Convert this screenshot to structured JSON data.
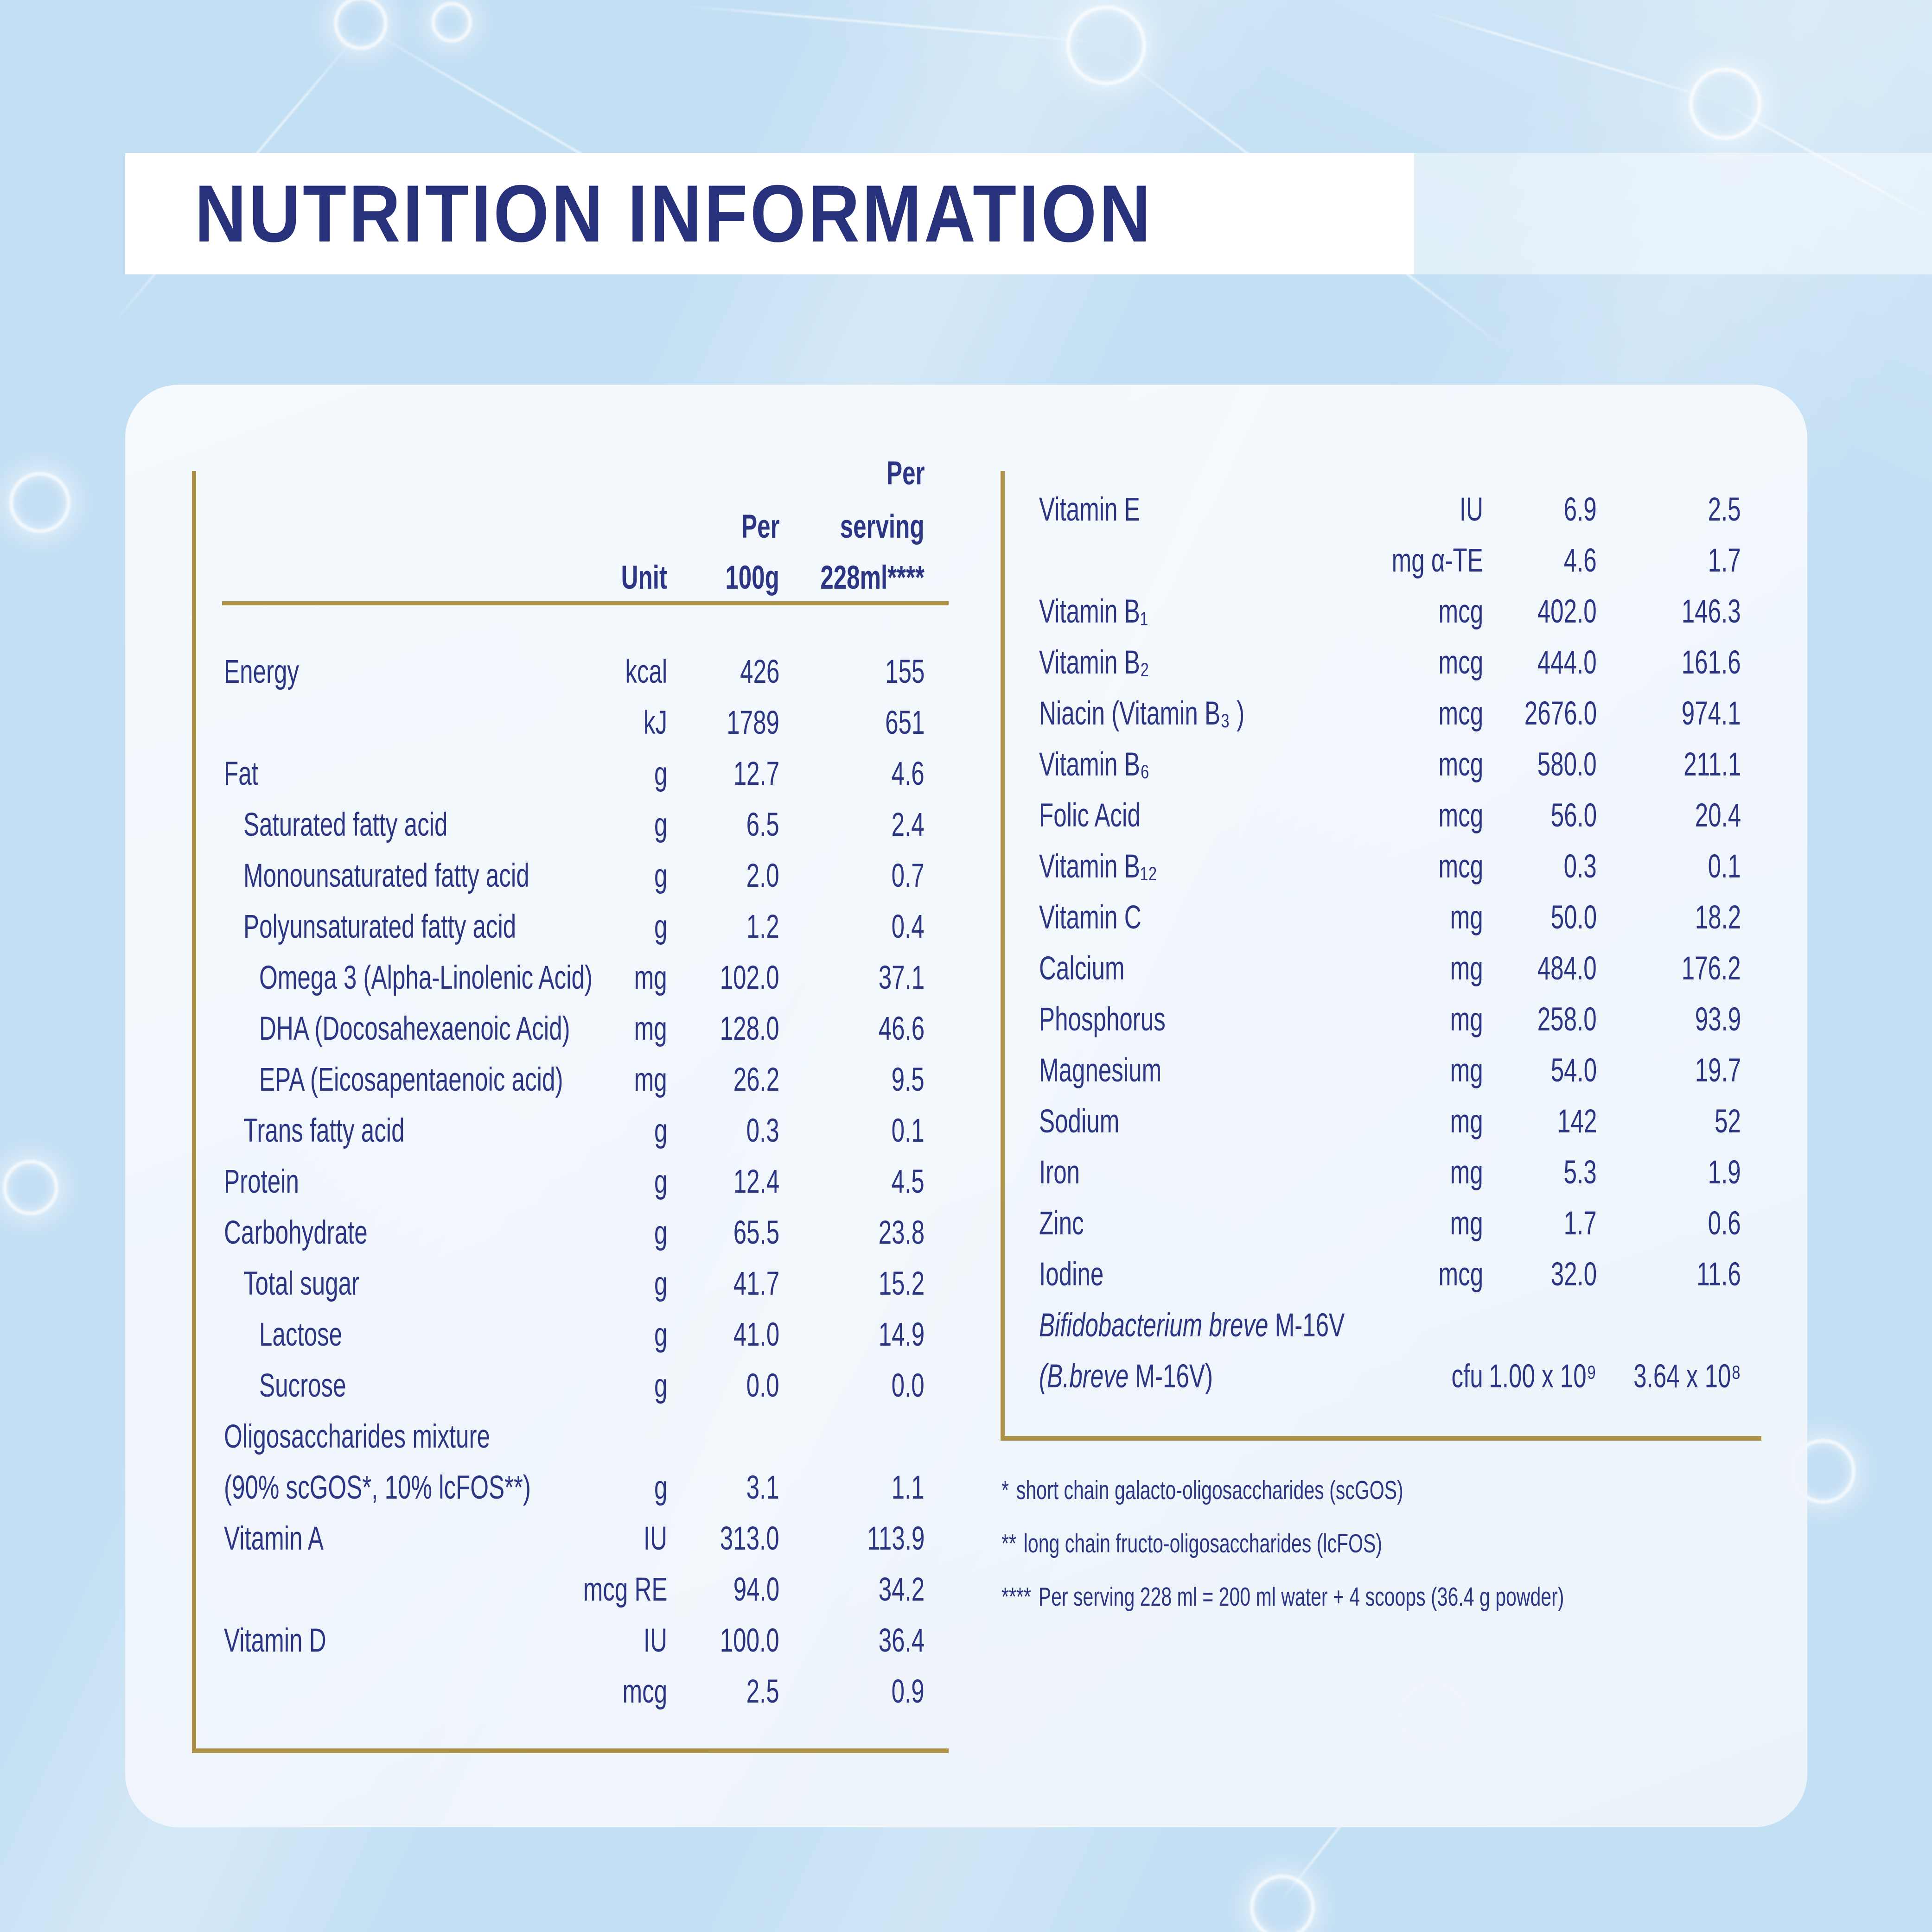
{
  "page": {
    "title": "NUTRITION INFORMATION"
  },
  "colors": {
    "navy_text": "#2b3583",
    "title_navy": "#27317c",
    "gold_rule": "#ac9044",
    "background_blue": "#c3dff4",
    "panel_white": "#f3f8fc",
    "band_white": "#ffffff"
  },
  "table_headers": {
    "unit": "Unit",
    "per": "Per",
    "per_100g": "100g",
    "per_serving_line1": "Per",
    "per_serving_line2": "serving",
    "per_serving_line3": "228ml****"
  },
  "left_table": {
    "rows": [
      {
        "label": "Energy",
        "indent": 0,
        "unit": "kcal",
        "per_100g": "426",
        "per_serving": "155"
      },
      {
        "label": "",
        "indent": 0,
        "unit": "kJ",
        "per_100g": "1789",
        "per_serving": "651"
      },
      {
        "label": "Fat",
        "indent": 0,
        "unit": "g",
        "per_100g": "12.7",
        "per_serving": "4.6"
      },
      {
        "label": "Saturated fatty acid",
        "indent": 1,
        "unit": "g",
        "per_100g": "6.5",
        "per_serving": "2.4"
      },
      {
        "label": "Monounsaturated fatty acid",
        "indent": 1,
        "unit": "g",
        "per_100g": "2.0",
        "per_serving": "0.7"
      },
      {
        "label": "Polyunsaturated fatty acid",
        "indent": 1,
        "unit": "g",
        "per_100g": "1.2",
        "per_serving": "0.4"
      },
      {
        "label": "Omega 3 (Alpha-Linolenic Acid)",
        "indent": 2,
        "unit": "mg",
        "per_100g": "102.0",
        "per_serving": "37.1"
      },
      {
        "label": "DHA (Docosahexaenoic Acid)",
        "indent": 2,
        "unit": "mg",
        "per_100g": "128.0",
        "per_serving": "46.6"
      },
      {
        "label": "EPA (Eicosapentaenoic acid)",
        "indent": 2,
        "unit": "mg",
        "per_100g": "26.2",
        "per_serving": "9.5"
      },
      {
        "label": "Trans fatty acid",
        "indent": 1,
        "unit": "g",
        "per_100g": "0.3",
        "per_serving": "0.1"
      },
      {
        "label": "Protein",
        "indent": 0,
        "unit": "g",
        "per_100g": "12.4",
        "per_serving": "4.5"
      },
      {
        "label": "Carbohydrate",
        "indent": 0,
        "unit": "g",
        "per_100g": "65.5",
        "per_serving": "23.8"
      },
      {
        "label": "Total sugar",
        "indent": 1,
        "unit": "g",
        "per_100g": "41.7",
        "per_serving": "15.2"
      },
      {
        "label": "Lactose",
        "indent": 2,
        "unit": "g",
        "per_100g": "41.0",
        "per_serving": "14.9"
      },
      {
        "label": "Sucrose",
        "indent": 2,
        "unit": "g",
        "per_100g": "0.0",
        "per_serving": "0.0"
      },
      {
        "label": "Oligosaccharides mixture",
        "indent": 0,
        "unit": "",
        "per_100g": "",
        "per_serving": ""
      },
      {
        "label": "(90% scGOS*, 10% lcFOS**)",
        "indent": 0,
        "unit": "g",
        "per_100g": "3.1",
        "per_serving": "1.1"
      },
      {
        "label": "Vitamin A",
        "indent": 0,
        "unit": "IU",
        "per_100g": "313.0",
        "per_serving": "113.9"
      },
      {
        "label": "",
        "indent": 0,
        "unit": "mcg RE",
        "per_100g": "94.0",
        "per_serving": "34.2"
      },
      {
        "label": "Vitamin D",
        "indent": 0,
        "unit": "IU",
        "per_100g": "100.0",
        "per_serving": "36.4"
      },
      {
        "label": "",
        "indent": 0,
        "unit": "mcg",
        "per_100g": "2.5",
        "per_serving": "0.9"
      }
    ]
  },
  "right_table": {
    "rows": [
      {
        "label": "Vitamin E",
        "unit": "IU",
        "per_100g": "6.9",
        "per_serving": "2.5"
      },
      {
        "label": "",
        "unit": "mg α-TE",
        "per_100g": "4.6",
        "per_serving": "1.7"
      },
      {
        "label": "Vitamin B₁",
        "unit": "mcg",
        "per_100g": "402.0",
        "per_serving": "146.3"
      },
      {
        "label": "Vitamin B₂",
        "unit": "mcg",
        "per_100g": "444.0",
        "per_serving": "161.6"
      },
      {
        "label": "Niacin (Vitamin B₃ )",
        "unit": "mcg",
        "per_100g": "2676.0",
        "per_serving": "974.1"
      },
      {
        "label": "Vitamin B₆",
        "unit": "mcg",
        "per_100g": "580.0",
        "per_serving": "211.1"
      },
      {
        "label": "Folic Acid",
        "unit": "mcg",
        "per_100g": "56.0",
        "per_serving": "20.4"
      },
      {
        "label": "Vitamin B₁₂",
        "unit": "mcg",
        "per_100g": "0.3",
        "per_serving": "0.1"
      },
      {
        "label": "Vitamin C",
        "unit": "mg",
        "per_100g": "50.0",
        "per_serving": "18.2"
      },
      {
        "label": "Calcium",
        "unit": "mg",
        "per_100g": "484.0",
        "per_serving": "176.2"
      },
      {
        "label": "Phosphorus",
        "unit": "mg",
        "per_100g": "258.0",
        "per_serving": "93.9"
      },
      {
        "label": "Magnesium",
        "unit": "mg",
        "per_100g": "54.0",
        "per_serving": "19.7"
      },
      {
        "label": "Sodium",
        "unit": "mg",
        "per_100g": "142",
        "per_serving": "52"
      },
      {
        "label": "Iron",
        "unit": "mg",
        "per_100g": "5.3",
        "per_serving": "1.9"
      },
      {
        "label": "Zinc",
        "unit": "mg",
        "per_100g": "1.7",
        "per_serving": "0.6"
      },
      {
        "label": "Iodine",
        "unit": "mcg",
        "per_100g": "32.0",
        "per_serving": "11.6"
      },
      {
        "label_italic": "Bifidobacterium breve",
        "label_rest": " M-16V",
        "unit": "",
        "per_100g": "",
        "per_serving": ""
      },
      {
        "label_italic": "(B.breve",
        "label_rest": " M-16V)",
        "unit": "cfu",
        "per_100g": "1.00 x 10⁹",
        "per_serving": "3.64 x 10⁸"
      }
    ]
  },
  "footnotes": [
    {
      "marker": "*",
      "text": "short chain galacto-oligosaccharides (scGOS)"
    },
    {
      "marker": "**",
      "text": "long chain fructo-oligosaccharides (lcFOS)"
    },
    {
      "marker": "****",
      "text": "Per serving 228 ml = 200 ml water + 4 scoops (36.4 g powder)"
    }
  ]
}
